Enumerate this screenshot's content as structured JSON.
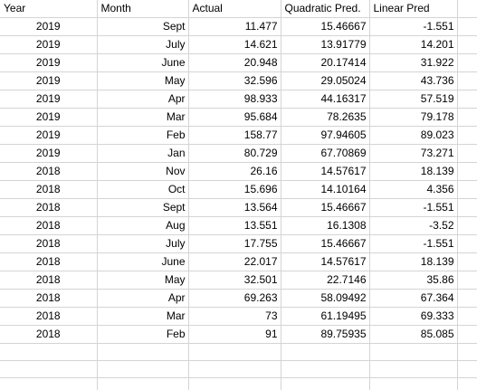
{
  "headers": {
    "year": "Year",
    "month": "Month",
    "actual": "Actual",
    "quad": "Quadratic Pred.",
    "lin": "Linear Pred"
  },
  "rows": [
    {
      "year": "2019",
      "month": "Sept",
      "actual": "11.477",
      "quad": "15.46667",
      "lin": "-1.551"
    },
    {
      "year": "2019",
      "month": "July",
      "actual": "14.621",
      "quad": "13.91779",
      "lin": "14.201"
    },
    {
      "year": "2019",
      "month": "June",
      "actual": "20.948",
      "quad": "20.17414",
      "lin": "31.922"
    },
    {
      "year": "2019",
      "month": "May",
      "actual": "32.596",
      "quad": "29.05024",
      "lin": "43.736"
    },
    {
      "year": "2019",
      "month": "Apr",
      "actual": "98.933",
      "quad": "44.16317",
      "lin": "57.519"
    },
    {
      "year": "2019",
      "month": "Mar",
      "actual": "95.684",
      "quad": "78.2635",
      "lin": "79.178"
    },
    {
      "year": "2019",
      "month": "Feb",
      "actual": "158.77",
      "quad": "97.94605",
      "lin": "89.023"
    },
    {
      "year": "2019",
      "month": "Jan",
      "actual": "80.729",
      "quad": "67.70869",
      "lin": "73.271"
    },
    {
      "year": "2018",
      "month": "Nov",
      "actual": "26.16",
      "quad": "14.57617",
      "lin": "18.139"
    },
    {
      "year": "2018",
      "month": "Oct",
      "actual": "15.696",
      "quad": "14.10164",
      "lin": "4.356"
    },
    {
      "year": "2018",
      "month": "Sept",
      "actual": "13.564",
      "quad": "15.46667",
      "lin": "-1.551"
    },
    {
      "year": "2018",
      "month": "Aug",
      "actual": "13.551",
      "quad": "16.1308",
      "lin": "-3.52"
    },
    {
      "year": "2018",
      "month": "July",
      "actual": "17.755",
      "quad": "15.46667",
      "lin": "-1.551"
    },
    {
      "year": "2018",
      "month": "June",
      "actual": "22.017",
      "quad": "14.57617",
      "lin": "18.139"
    },
    {
      "year": "2018",
      "month": "May",
      "actual": "32.501",
      "quad": "22.7146",
      "lin": "35.86"
    },
    {
      "year": "2018",
      "month": "Apr",
      "actual": "69.263",
      "quad": "58.09492",
      "lin": "67.364"
    },
    {
      "year": "2018",
      "month": "Mar",
      "actual": "73",
      "quad": "61.19495",
      "lin": "69.333"
    },
    {
      "year": "2018",
      "month": "Feb",
      "actual": "91",
      "quad": "89.75935",
      "lin": "85.085"
    }
  ],
  "empty_rows": 3
}
